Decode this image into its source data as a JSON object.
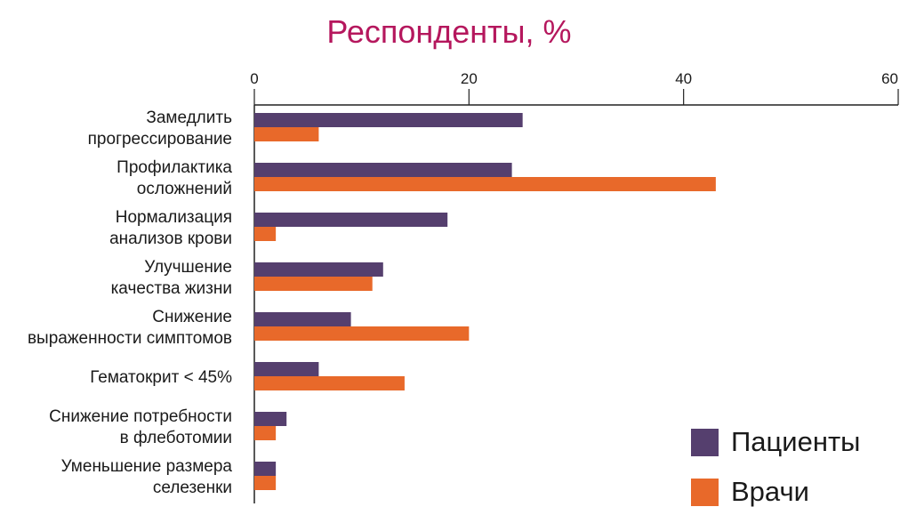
{
  "chart_data": {
    "type": "bar",
    "orientation": "horizontal",
    "title": "Респонденты, %",
    "xlim": [
      0,
      60
    ],
    "xticks": [
      "0",
      "20",
      "40",
      "60"
    ],
    "categories": [
      [
        "Замедлить",
        "прогрессирование"
      ],
      [
        "Профилактика",
        "осложнений"
      ],
      [
        "Нормализация",
        "анализов крови"
      ],
      [
        "Улучшение",
        "качества жизни"
      ],
      [
        "Снижение",
        "выраженности симптомов"
      ],
      [
        "Гематокрит < 45%"
      ],
      [
        "Снижение потребности",
        "в флеботомии"
      ],
      [
        "Уменьшение размера",
        "селезенки"
      ]
    ],
    "series": [
      {
        "name": "Пациенты",
        "color": "#553f6e",
        "values": [
          25,
          24,
          18,
          12,
          9,
          6,
          3,
          2
        ]
      },
      {
        "name": "Врачи",
        "color": "#e8692a",
        "values": [
          6,
          43,
          2,
          11,
          20,
          14,
          2,
          2
        ]
      }
    ],
    "grid": false,
    "legend_position": "bottom-right",
    "title_color": "#b5175d"
  }
}
